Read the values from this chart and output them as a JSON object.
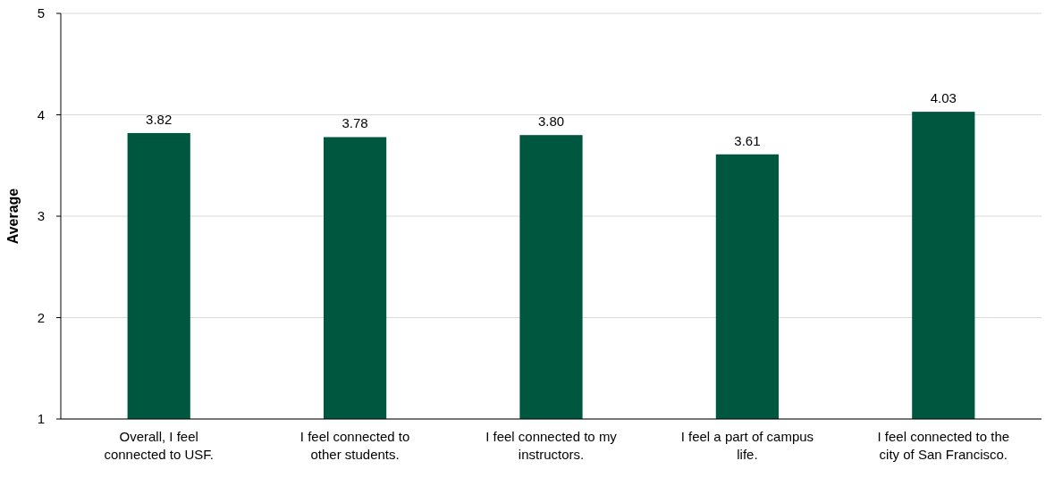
{
  "chart_data": {
    "type": "bar",
    "ylabel": "Average",
    "categories": [
      "Overall, I feel connected to USF.",
      "I feel connected to other students.",
      "I feel connected to my instructors.",
      "I feel a part of campus life.",
      "I feel connected to the city of San Francisco."
    ],
    "values": [
      3.82,
      3.78,
      3.8,
      3.61,
      4.03
    ],
    "value_labels": [
      "3.82",
      "3.78",
      "3.80",
      "3.61",
      "4.03"
    ],
    "color": "#00573f",
    "ylim": [
      1,
      5
    ],
    "yticks": [
      1,
      2,
      3,
      4,
      5
    ],
    "grid": "y"
  }
}
